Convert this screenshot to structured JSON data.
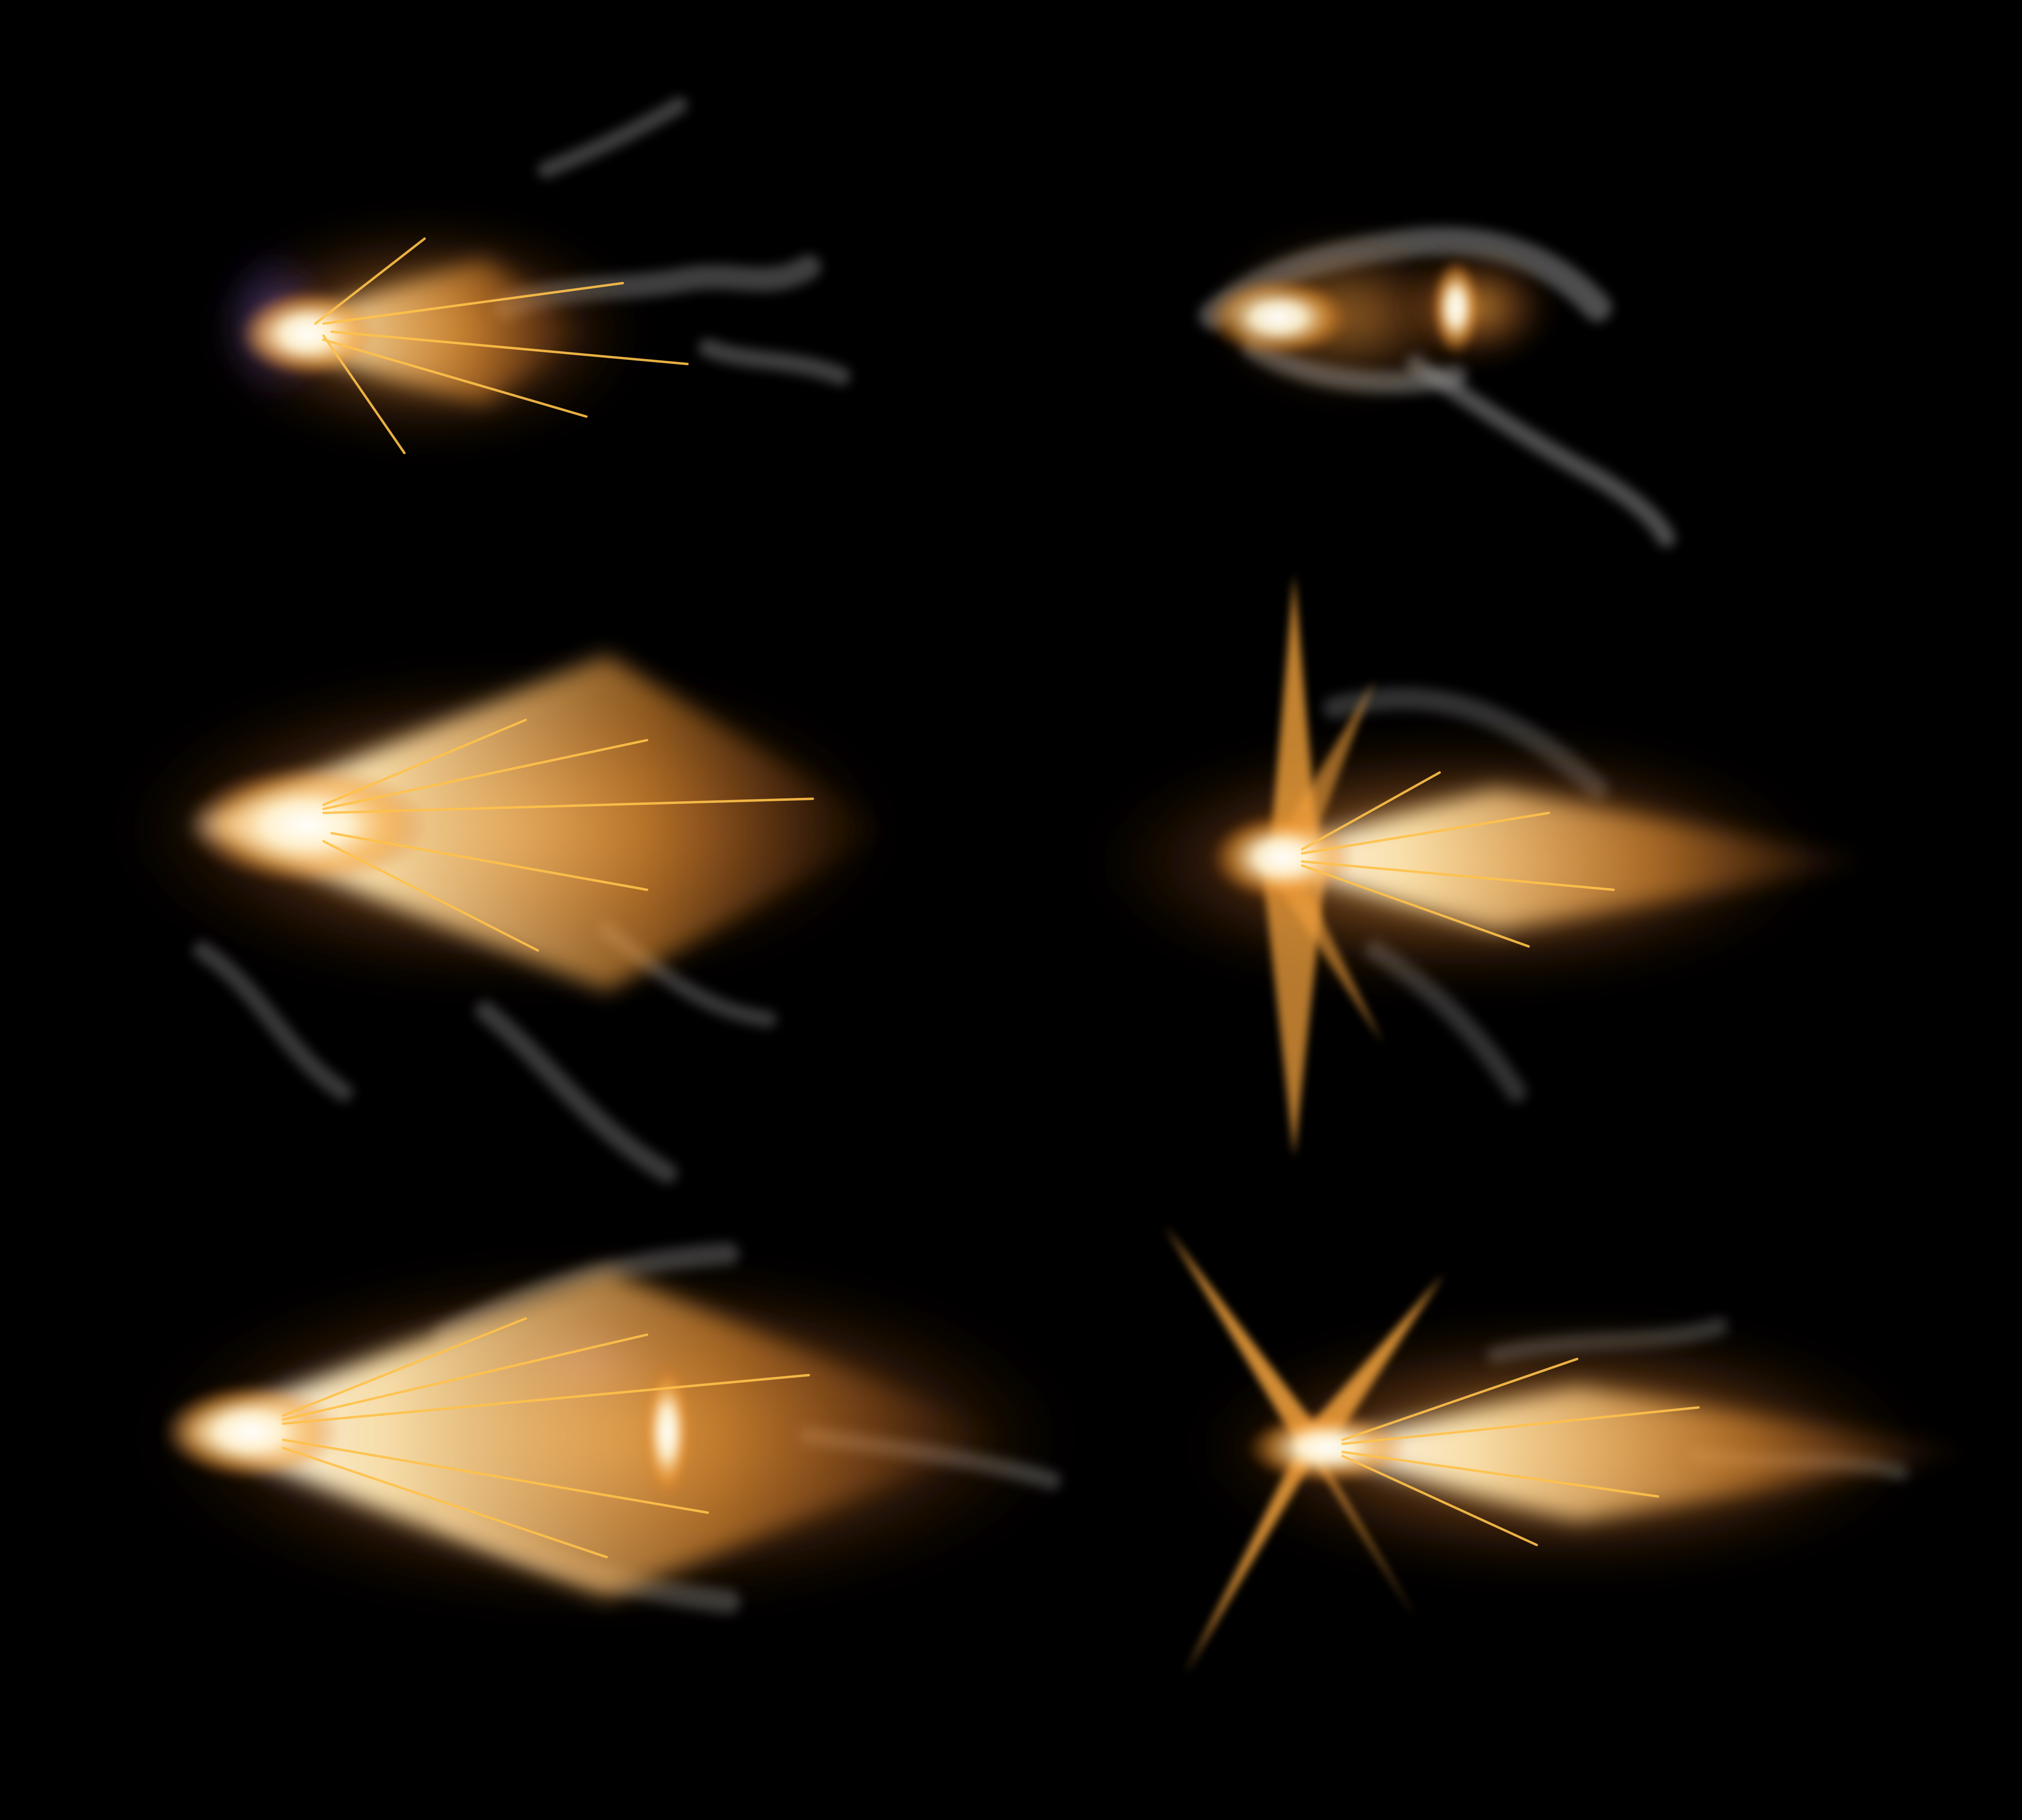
{
  "scene": {
    "background_color": "#000000",
    "description_colors": {
      "core": "#FFFFFF",
      "hot": "#FFE8B8",
      "flame": "#F5A033",
      "ember": "#C8641E",
      "smoke": "#9A9A9A",
      "spark": "#FFC24A",
      "blue_tint": "#6A6AFF"
    },
    "flashes": [
      {
        "name": "flash-1",
        "style": "cone-small",
        "direction": "right"
      },
      {
        "name": "flash-2",
        "style": "puff-double",
        "direction": "right"
      },
      {
        "name": "flash-3",
        "style": "cone-long",
        "direction": "right"
      },
      {
        "name": "flash-4",
        "style": "cross-vertical",
        "direction": "right"
      },
      {
        "name": "flash-5",
        "style": "cone-wide",
        "direction": "right"
      },
      {
        "name": "flash-6",
        "style": "x-burst",
        "direction": "right"
      }
    ]
  }
}
